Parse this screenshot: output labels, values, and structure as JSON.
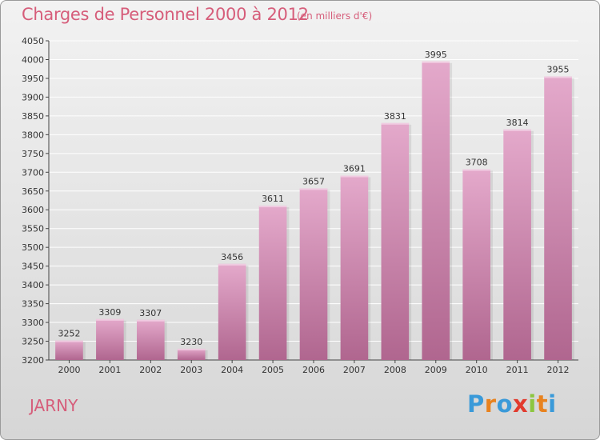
{
  "header": {
    "title": "Charges de Personnel 2000 à 2012",
    "subtitle": "(en milliers d'€)"
  },
  "footer": {
    "city": "JARNY",
    "logo": "Proxiti"
  },
  "colors": {
    "title": "#d65d7a",
    "bar_top": "#e4a9cb",
    "bar_bottom": "#b0668f",
    "grid": "#ffffff",
    "axis": "#444444",
    "logo_letters": [
      "#3a9ad9",
      "#e8821e",
      "#3a9ad9",
      "#e23b2e",
      "#8cc63f",
      "#e8821e",
      "#3a9ad9"
    ]
  },
  "chart_data": {
    "type": "bar",
    "title": "Charges de Personnel 2000 à 2012",
    "subtitle": "(en milliers d'€)",
    "categories": [
      "2000",
      "2001",
      "2002",
      "2003",
      "2004",
      "2005",
      "2006",
      "2007",
      "2008",
      "2009",
      "2010",
      "2011",
      "2012"
    ],
    "values": [
      3252,
      3309,
      3307,
      3230,
      3456,
      3611,
      3657,
      3691,
      3831,
      3995,
      3708,
      3814,
      3955
    ],
    "data_labels": [
      "3252",
      "3309",
      "3307",
      "3230",
      "3456",
      "3611",
      "3657",
      "3691",
      "3831",
      "3995",
      "3708",
      "3814",
      "3955"
    ],
    "yticks": [
      "3200",
      "3250",
      "3300",
      "3350",
      "3400",
      "3450",
      "3500",
      "3550",
      "3600",
      "3650",
      "3700",
      "3750",
      "3800",
      "3850",
      "3900",
      "3950",
      "4000",
      "4050"
    ],
    "ylim": [
      3200,
      4050
    ],
    "ystep": 50,
    "grid": true,
    "legend": "none",
    "xlabel": "",
    "ylabel": ""
  }
}
